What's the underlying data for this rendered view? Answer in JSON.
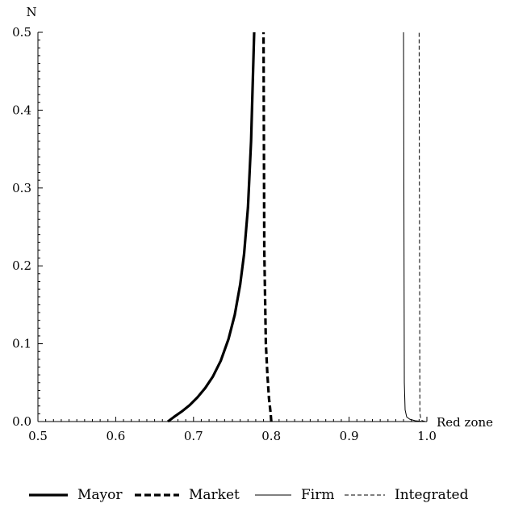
{
  "chart_data": {
    "type": "line",
    "xlabel": "Red zone",
    "ylabel": "N",
    "xlim": [
      0.5,
      1.0
    ],
    "ylim": [
      0.0,
      0.5
    ],
    "xticks": [
      "0.5",
      "0.6",
      "0.7",
      "0.8",
      "0.9",
      "1.0"
    ],
    "yticks": [
      "0.0",
      "0.1",
      "0.2",
      "0.3",
      "0.4",
      "0.5"
    ],
    "grid": false,
    "legend_position": "bottom",
    "series": [
      {
        "name": "Mayor",
        "style": "solid-thick",
        "x": [
          0.667,
          0.675,
          0.685,
          0.695,
          0.705,
          0.715,
          0.725,
          0.735,
          0.745,
          0.753,
          0.76,
          0.765,
          0.77,
          0.774,
          0.778
        ],
        "y": [
          0.0,
          0.006,
          0.013,
          0.021,
          0.031,
          0.043,
          0.058,
          0.078,
          0.106,
          0.137,
          0.176,
          0.215,
          0.275,
          0.36,
          0.5
        ]
      },
      {
        "name": "Market",
        "style": "dashed-thick",
        "x": [
          0.8,
          0.799,
          0.797,
          0.795,
          0.793,
          0.791,
          0.79
        ],
        "y": [
          0.0,
          0.012,
          0.03,
          0.06,
          0.1,
          0.22,
          0.5
        ]
      },
      {
        "name": "Firm",
        "style": "solid-thin",
        "x": [
          0.995,
          0.985,
          0.978,
          0.974,
          0.972,
          0.971,
          0.97
        ],
        "y": [
          0.0,
          0.001,
          0.003,
          0.006,
          0.015,
          0.05,
          0.5
        ]
      },
      {
        "name": "Integrated",
        "style": "dashed-thin",
        "x": [
          0.998,
          0.994,
          0.992,
          0.991,
          0.99
        ],
        "y": [
          0.0,
          0.001,
          0.004,
          0.012,
          0.5
        ]
      }
    ]
  }
}
